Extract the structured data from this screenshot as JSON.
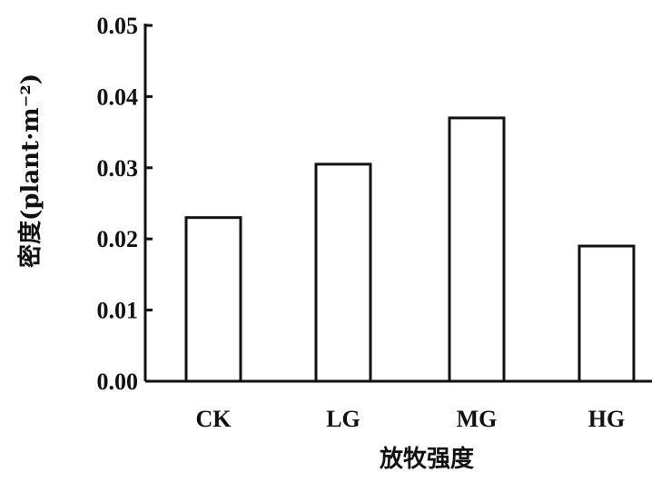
{
  "chart_data": {
    "type": "bar",
    "categories": [
      "CK",
      "LG",
      "MG",
      "HG"
    ],
    "values": [
      0.023,
      0.0305,
      0.037,
      0.019
    ],
    "xlabel": "放牧强度",
    "ylabel": "密度(plant·m⁻²)",
    "ylim": [
      0,
      0.05
    ],
    "yticks": [
      "0.00",
      "0.01",
      "0.02",
      "0.03",
      "0.04",
      "0.05"
    ],
    "grid": false,
    "legend": "none",
    "bar_fill": "#ffffff",
    "bar_stroke": "#111111",
    "axis_color": "#111111"
  }
}
